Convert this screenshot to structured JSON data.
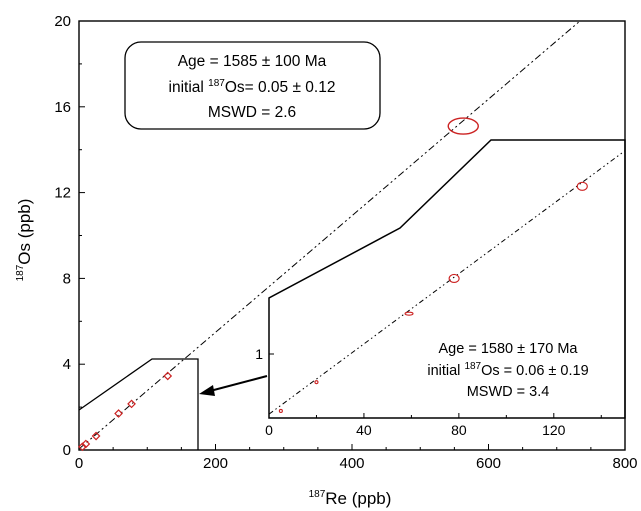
{
  "chart_data": [
    {
      "type": "scatter",
      "xlim": [
        0,
        800
      ],
      "ylim": [
        0,
        20
      ],
      "x_ticks": [
        0,
        200,
        400,
        600,
        800
      ],
      "y_ticks": [
        0,
        4,
        8,
        12,
        16,
        20
      ],
      "xlabel_sup": "187",
      "xlabel": "Re (ppb)",
      "ylabel_sup": "187",
      "ylabel": "Os (ppb)",
      "points": [
        {
          "x": 5,
          "y": 0.15
        },
        {
          "x": 10,
          "y": 0.28
        },
        {
          "x": 25,
          "y": 0.65
        },
        {
          "x": 58,
          "y": 1.7
        },
        {
          "x": 77,
          "y": 2.15
        },
        {
          "x": 130,
          "y": 3.45
        },
        {
          "x": 563,
          "y": 15.1
        }
      ],
      "isochron": {
        "intercept": 0.05,
        "slope": 0.02718
      },
      "annotation": {
        "line1": "Age = 1585 ± 100  Ma",
        "line2_prefix": "initial ",
        "line2_sup": "187",
        "line2_suffix": "Os= 0.05 ± 0.12",
        "line3": "MSWD = 2.6"
      },
      "color": "#cc2222"
    },
    {
      "type": "scatter",
      "inset": true,
      "xlim": [
        0,
        150
      ],
      "x_ticks": [
        0,
        40,
        80,
        120
      ],
      "y_ticks": [
        1
      ],
      "points": [
        {
          "x": 5,
          "y": 0.11
        },
        {
          "x": 20,
          "y": 0.56
        },
        {
          "x": 59,
          "y": 1.63
        },
        {
          "x": 78,
          "y": 2.18
        },
        {
          "x": 132,
          "y": 3.62
        }
      ],
      "isochron": {
        "intercept": 0.06,
        "slope": 0.02744
      },
      "annotation": {
        "line1": "Age = 1580 ± 170  Ma",
        "line2_prefix": "initial ",
        "line2_sup": "187",
        "line2_suffix": "Os = 0.06 ± 0.19",
        "line3": "MSWD = 3.4"
      },
      "color": "#cc2222"
    }
  ]
}
